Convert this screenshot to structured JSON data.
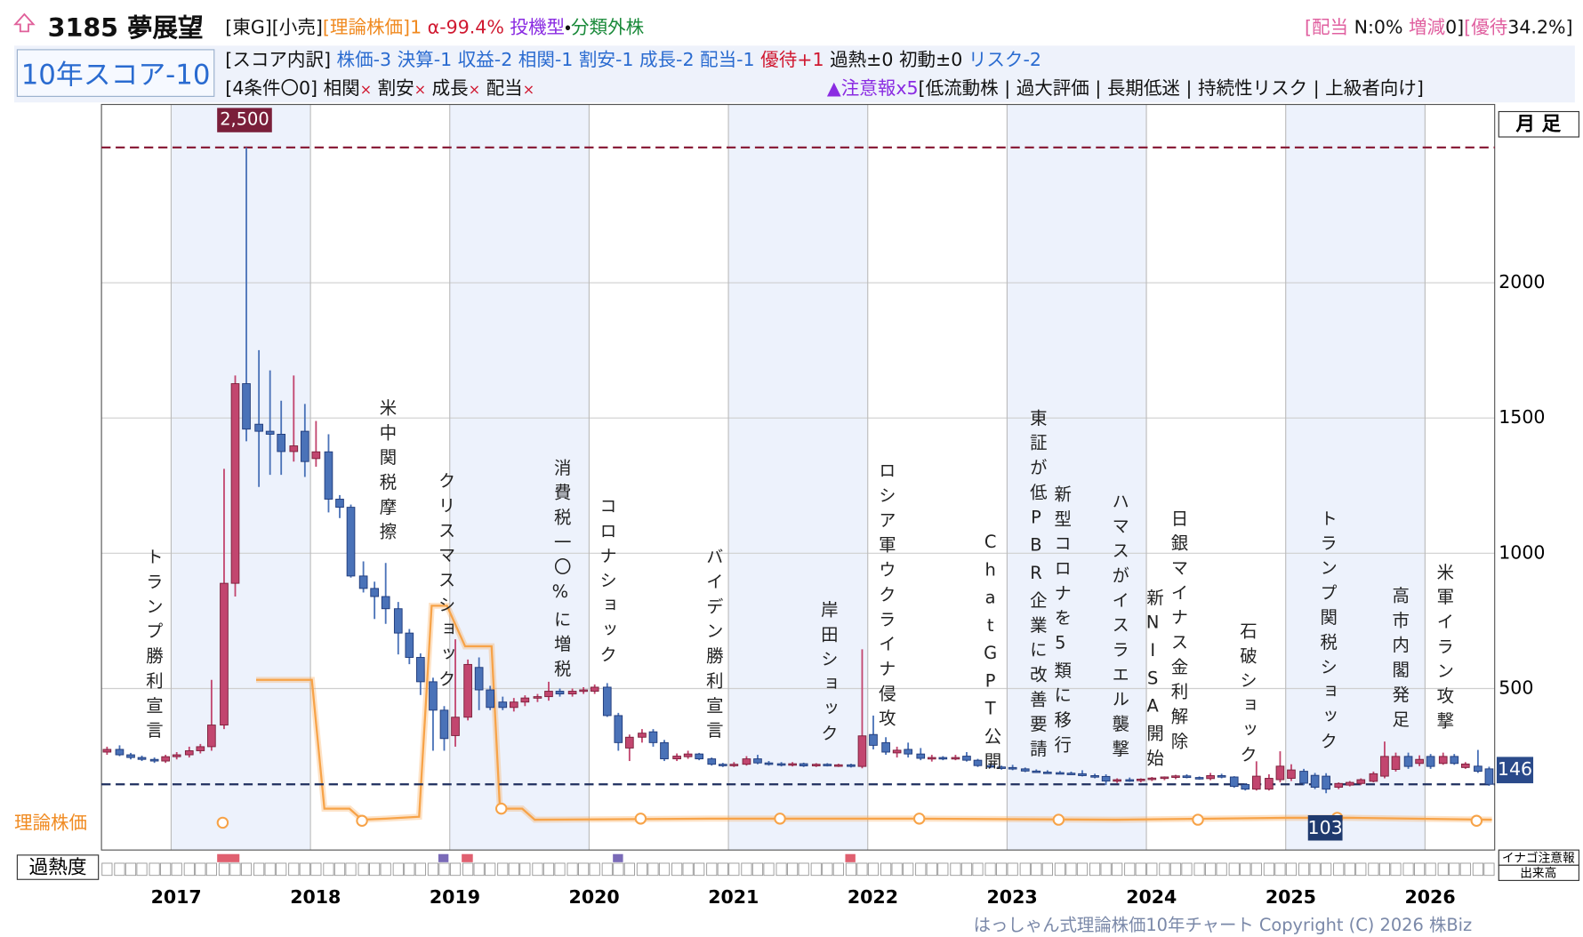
{
  "header": {
    "code_name": "3185 夢展望",
    "market": "[東G][小売]",
    "theory": "[理論株価]1",
    "alpha": "α-99.4%",
    "style": "投機型",
    "sep": "・",
    "class": "分類外株",
    "dividend_label": "[配当",
    "dividend": "N:0%",
    "change_label": "増減",
    "change": "0]",
    "yutai_label": "[優待",
    "yutai": "34.2%]",
    "score": "10年スコア-10",
    "breakdown_label": "[スコア内訳]",
    "breakdown": "株価-3 決算-1 収益-2 相関-1 割安-1 成長-2 配当-1",
    "yutai_score": "優待+1",
    "neutral": "過熱±0 初動±0",
    "risk": "リスク-2",
    "conditions": "[4条件〇0]",
    "cond_items": [
      "相関",
      "割安",
      "成長",
      "配当"
    ],
    "cond_mark": "×",
    "warning": "▲注意報x5",
    "warning_items": "[低流動株 | 過大評価 | 長期低迷 | 持続性リスク | 上級者向け]"
  },
  "chart_data": {
    "type": "candlestick",
    "period_label": "月 足",
    "x": [
      2016.54,
      2016.63,
      2016.71,
      2016.79,
      2016.88,
      2016.96,
      2017.04,
      2017.13,
      2017.21,
      2017.29,
      2017.38,
      2017.46,
      2017.54,
      2017.63,
      2017.71,
      2017.79,
      2017.88,
      2017.96,
      2018.04,
      2018.13,
      2018.21,
      2018.29,
      2018.38,
      2018.46,
      2018.54,
      2018.63,
      2018.71,
      2018.79,
      2018.88,
      2018.96,
      2019.04,
      2019.13,
      2019.21,
      2019.29,
      2019.38,
      2019.46,
      2019.54,
      2019.63,
      2019.71,
      2019.79,
      2019.88,
      2019.96,
      2020.04,
      2020.13,
      2020.21,
      2020.29,
      2020.38,
      2020.46,
      2020.54,
      2020.63,
      2020.71,
      2020.79,
      2020.88,
      2020.96,
      2021.04,
      2021.13,
      2021.21,
      2021.29,
      2021.38,
      2021.46,
      2021.54,
      2021.63,
      2021.71,
      2021.79,
      2021.88,
      2021.96,
      2022.04,
      2022.13,
      2022.21,
      2022.29,
      2022.38,
      2022.46,
      2022.54,
      2022.63,
      2022.71,
      2022.79,
      2022.88,
      2022.96,
      2023.04,
      2023.13,
      2023.21,
      2023.29,
      2023.38,
      2023.46,
      2023.54,
      2023.63,
      2023.71,
      2023.79,
      2023.88,
      2023.96,
      2024.04,
      2024.13,
      2024.21,
      2024.29,
      2024.38,
      2024.46,
      2024.54,
      2024.63,
      2024.71,
      2024.79,
      2024.88,
      2024.96,
      2025.04,
      2025.13,
      2025.21,
      2025.29,
      2025.38,
      2025.46,
      2025.54,
      2025.63,
      2025.71,
      2025.79,
      2025.88,
      2025.96,
      2026.04,
      2026.13,
      2026.21,
      2026.29,
      2026.38,
      2026.46
    ],
    "open": [
      265,
      275,
      255,
      245,
      238,
      232,
      248,
      255,
      270,
      285,
      365,
      889,
      1627,
      1477,
      1451,
      1440,
      1376,
      1451,
      1350,
      1375,
      1200,
      1170,
      916,
      870,
      840,
      795,
      705,
      615,
      525,
      420,
      326,
      394,
      578,
      495,
      450,
      430,
      450,
      465,
      470,
      490,
      480,
      490,
      490,
      505,
      400,
      280,
      320,
      340,
      300,
      240,
      248,
      258,
      240,
      220,
      215,
      220,
      240,
      225,
      222,
      218,
      222,
      214,
      220,
      215,
      218,
      212,
      330,
      300,
      262,
      275,
      258,
      242,
      245,
      240,
      250,
      235,
      215,
      210,
      208,
      203,
      195,
      191,
      189,
      187,
      185,
      178,
      175,
      158,
      163,
      161,
      165,
      169,
      173,
      177,
      171,
      167,
      178,
      173,
      145,
      128,
      128,
      163,
      168,
      194,
      179,
      176,
      135,
      143,
      149,
      157,
      176,
      201,
      249,
      223,
      249,
      223,
      249,
      208,
      213,
      203
    ],
    "high": [
      285,
      290,
      262,
      252,
      245,
      255,
      265,
      285,
      295,
      532,
      1312,
      1657,
      2500,
      1751,
      1676,
      1564,
      1657,
      1552,
      1489,
      1440,
      1215,
      1180,
      970,
      895,
      964,
      820,
      720,
      630,
      540,
      435,
      682,
      607,
      615,
      510,
      470,
      465,
      475,
      480,
      525,
      500,
      500,
      505,
      515,
      520,
      410,
      330,
      350,
      350,
      310,
      260,
      270,
      262,
      245,
      225,
      228,
      250,
      255,
      232,
      228,
      228,
      226,
      224,
      224,
      222,
      222,
      645,
      400,
      320,
      285,
      300,
      280,
      255,
      250,
      255,
      265,
      240,
      220,
      215,
      218,
      208,
      201,
      198,
      195,
      193,
      198,
      185,
      183,
      168,
      171,
      168,
      173,
      175,
      181,
      183,
      175,
      188,
      185,
      176,
      149,
      231,
      183,
      268,
      220,
      203,
      188,
      187,
      153,
      158,
      168,
      193,
      304,
      263,
      263,
      253,
      258,
      263,
      258,
      228,
      273,
      211
    ],
    "low": [
      255,
      250,
      238,
      232,
      225,
      225,
      238,
      245,
      260,
      270,
      350,
      840,
      1414,
      1245,
      1290,
      1290,
      1339,
      1282,
      1320,
      1151,
      1130,
      910,
      855,
      757,
      739,
      626,
      590,
      476,
      270,
      270,
      285,
      382,
      420,
      420,
      420,
      415,
      435,
      450,
      455,
      470,
      470,
      480,
      480,
      395,
      270,
      232,
      300,
      285,
      232,
      232,
      240,
      235,
      215,
      210,
      210,
      215,
      220,
      215,
      212,
      212,
      210,
      210,
      212,
      210,
      208,
      205,
      275,
      255,
      245,
      245,
      235,
      230,
      235,
      235,
      230,
      210,
      205,
      200,
      198,
      191,
      188,
      185,
      183,
      181,
      175,
      168,
      143,
      151,
      155,
      153,
      158,
      161,
      165,
      168,
      163,
      161,
      168,
      133,
      123,
      123,
      123,
      153,
      158,
      143,
      128,
      113,
      128,
      138,
      143,
      153,
      168,
      193,
      203,
      213,
      203,
      218,
      218,
      203,
      188,
      140
    ],
    "close": [
      275,
      255,
      245,
      238,
      232,
      248,
      255,
      270,
      285,
      365,
      889,
      1627,
      1459,
      1451,
      1440,
      1376,
      1397,
      1339,
      1375,
      1200,
      1170,
      916,
      870,
      840,
      795,
      705,
      615,
      525,
      420,
      315,
      394,
      589,
      495,
      430,
      430,
      450,
      465,
      470,
      490,
      480,
      490,
      495,
      505,
      400,
      300,
      320,
      335,
      300,
      240,
      250,
      258,
      240,
      220,
      215,
      220,
      240,
      225,
      222,
      218,
      222,
      214,
      220,
      215,
      218,
      212,
      325,
      290,
      265,
      272,
      258,
      242,
      245,
      240,
      245,
      235,
      215,
      210,
      205,
      203,
      195,
      191,
      189,
      187,
      185,
      178,
      175,
      158,
      163,
      161,
      165,
      169,
      173,
      177,
      171,
      167,
      178,
      173,
      138,
      128,
      176,
      168,
      213,
      199,
      150,
      135,
      128,
      149,
      153,
      163,
      185,
      249,
      249,
      212,
      238,
      212,
      249,
      223,
      221,
      194,
      146
    ],
    "up_color": "#c2466f",
    "down_color": "#4a72b8",
    "xlim": [
      2016.5,
      2026.5
    ],
    "xticks": [
      2017,
      2018,
      2019,
      2020,
      2021,
      2022,
      2023,
      2024,
      2025,
      2026
    ],
    "ylim": [
      -97,
      2659
    ],
    "yticks": [
      500,
      1000,
      1500,
      2000
    ],
    "grid": true,
    "max_price": {
      "value": 2500,
      "label": "2,500"
    },
    "last_price": 146,
    "theory_price": 103,
    "theory_label": "理論株価",
    "theory": {
      "name": "理論株価",
      "color": "#f7a348",
      "x": [
        2017.61,
        2018.01,
        2018.1,
        2018.28,
        2018.37,
        2018.54,
        2018.78,
        2018.87,
        2018.98,
        2019.11,
        2019.3,
        2019.36,
        2019.52,
        2019.61,
        2020.87,
        2022.33,
        2023.78,
        2025.02,
        2025.46,
        2026.48
      ],
      "values": [
        532,
        532,
        56,
        56,
        15,
        19,
        26,
        806,
        806,
        656,
        656,
        56,
        56,
        15,
        19,
        19,
        15,
        22,
        22,
        15
      ]
    },
    "theory_markers": {
      "x": [
        2017.37,
        2018.37,
        2019.37,
        2020.37,
        2021.37,
        2022.37,
        2023.37,
        2024.37,
        2025.37,
        2026.37
      ],
      "values": [
        4,
        11,
        56,
        19,
        19,
        19,
        15,
        15,
        22,
        11
      ]
    },
    "heat_label": "過熱度",
    "inago_label": "イナゴ注意報",
    "volume_label": "出来高",
    "annotations": [
      "トランプ勝利宣言",
      "米中関税摩擦",
      "クリスマスショック",
      "消費税一〇%に増税",
      "コロナショック",
      "バイデン勝利宣言",
      "岸田ショック",
      "ロシア軍ウクライナ侵攻",
      "ChatGPT公開",
      "東証が低PBR企業に改善要請",
      "新型コロナを5類に移行",
      "ハマスがイスラエル襲撃",
      "新NISA開始",
      "日銀マイナス金利解除",
      "石破ショック",
      "トランプ関税ショック",
      "高市内閣発足",
      "米軍イラン攻撃"
    ],
    "footer": "はっしゃん式理論株価10年チャート Copyright (C) 2026 株Biz"
  }
}
